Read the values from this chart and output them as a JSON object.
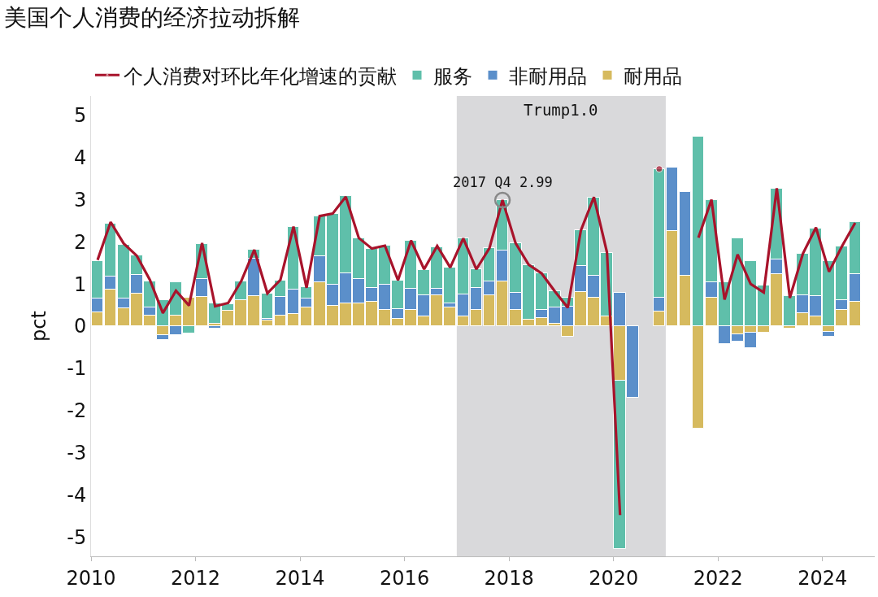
{
  "chart_data": {
    "type": "bar",
    "title": "美国个人消费的经济拉动拆解",
    "ylabel": "pct",
    "stacked": true,
    "x": [
      2010.125,
      2010.375,
      2010.625,
      2010.875,
      2011.125,
      2011.375,
      2011.625,
      2011.875,
      2012.125,
      2012.375,
      2012.625,
      2012.875,
      2013.125,
      2013.375,
      2013.625,
      2013.875,
      2014.125,
      2014.375,
      2014.625,
      2014.875,
      2015.125,
      2015.375,
      2015.625,
      2015.875,
      2016.125,
      2016.375,
      2016.625,
      2016.875,
      2017.125,
      2017.375,
      2017.625,
      2017.875,
      2018.125,
      2018.375,
      2018.625,
      2018.875,
      2019.125,
      2019.375,
      2019.625,
      2019.875,
      2020.125,
      2020.375,
      2020.625,
      2020.875,
      2021.125,
      2021.375,
      2021.625,
      2021.875,
      2022.125,
      2022.375,
      2022.625,
      2022.875,
      2023.125,
      2023.375,
      2023.625,
      2023.875,
      2024.125,
      2024.375,
      2024.625
    ],
    "series": [
      {
        "name": "个人消费对环比年化增速的贡献",
        "type": "line",
        "color": "#a8132b",
        "values": [
          1.57,
          2.47,
          1.96,
          1.67,
          1.1,
          0.31,
          0.84,
          0.49,
          1.97,
          0.47,
          0.55,
          1.07,
          1.81,
          0.78,
          1.1,
          2.36,
          0.91,
          2.61,
          2.67,
          3.07,
          2.09,
          1.84,
          1.91,
          1.09,
          2.03,
          1.35,
          1.9,
          1.39,
          2.08,
          1.35,
          1.85,
          2.99,
          1.97,
          1.46,
          1.25,
          0.83,
          0.44,
          2.27,
          3.06,
          1.75,
          -4.48,
          null,
          null,
          3.73,
          null,
          null,
          2.1,
          3.0,
          0.63,
          1.7,
          1.0,
          0.8,
          3.27,
          0.67,
          1.72,
          2.34,
          1.29,
          1.9,
          2.45
        ]
      },
      {
        "name": "耐用品",
        "color": "#d6ba5e",
        "values": [
          0.32,
          0.86,
          0.42,
          0.77,
          0.25,
          -0.21,
          0.25,
          0.67,
          0.69,
          0.05,
          0.36,
          0.62,
          0.72,
          0.13,
          0.25,
          0.29,
          0.45,
          1.04,
          0.49,
          0.54,
          0.54,
          0.57,
          0.38,
          0.18,
          0.38,
          0.23,
          0.73,
          0.45,
          0.23,
          0.38,
          0.73,
          1.07,
          0.38,
          0.16,
          0.2,
          0.05,
          -0.25,
          0.81,
          0.67,
          0.23,
          -1.29,
          null,
          null,
          0.34,
          2.25,
          1.2,
          -2.43,
          0.68,
          null,
          -0.19,
          -0.16,
          -0.16,
          1.23,
          -0.05,
          0.31,
          0.23,
          -0.13,
          0.39,
          0.57
        ]
      },
      {
        "name": "非耐用品",
        "color": "#5b8fca",
        "values": [
          0.33,
          0.32,
          0.23,
          0.45,
          0.2,
          -0.11,
          -0.21,
          null,
          0.43,
          -0.05,
          null,
          null,
          0.89,
          0.05,
          0.45,
          0.57,
          0.2,
          0.61,
          0.5,
          0.71,
          0.58,
          0.34,
          0.6,
          0.23,
          0.51,
          0.5,
          0.16,
          0.09,
          0.53,
          0.53,
          0.34,
          0.73,
          0.42,
          null,
          0.19,
          0.39,
          0.47,
          0.62,
          0.53,
          null,
          0.8,
          -1.7,
          null,
          0.34,
          1.52,
          1.99,
          null,
          0.36,
          -0.42,
          -0.18,
          -0.37,
          null,
          0.36,
          null,
          0.43,
          0.49,
          -0.12,
          0.22,
          0.67
        ]
      },
      {
        "name": "服务",
        "color": "#5fbfaa",
        "values": [
          0.89,
          1.25,
          1.28,
          0.45,
          0.61,
          0.62,
          0.79,
          -0.17,
          0.83,
          0.49,
          0.16,
          0.45,
          0.2,
          0.6,
          0.39,
          1.5,
          0.28,
          0.95,
          1.68,
          1.84,
          0.96,
          0.93,
          0.93,
          0.68,
          1.14,
          0.6,
          0.99,
          0.85,
          1.32,
          0.44,
          0.78,
          1.19,
          1.17,
          1.28,
          0.86,
          0.39,
          0.2,
          0.84,
          1.85,
          1.5,
          -3.99,
          null,
          null,
          3.05,
          null,
          null,
          4.5,
          1.96,
          1.04,
          2.08,
          1.54,
          0.96,
          1.68,
          0.72,
          0.98,
          1.6,
          1.54,
          1.29,
          1.22
        ]
      }
    ],
    "xlim": [
      2010,
      2025
    ],
    "xticks": [
      2010,
      2012,
      2014,
      2016,
      2018,
      2020,
      2022,
      2024
    ],
    "ylim": [
      -5.46,
      5.46
    ],
    "yticks": [
      -5,
      -4,
      -3,
      -2,
      -1,
      0,
      1,
      2,
      3,
      4,
      5
    ],
    "bands": [
      {
        "axis": "x",
        "from": 2017,
        "to": 2021,
        "label": "Trump1.0",
        "color": "#d9d9db"
      }
    ],
    "annotations": [
      {
        "text": "2017 Q4 2.99",
        "x": 2017.875,
        "y": 2.99
      }
    ],
    "grid": false,
    "legend": "top",
    "marker": "none",
    "line_style": "solid"
  }
}
